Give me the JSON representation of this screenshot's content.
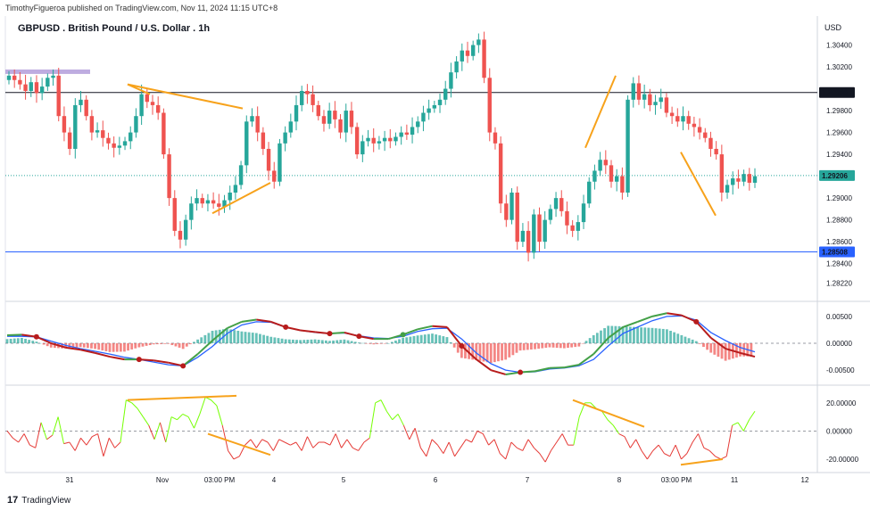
{
  "header": {
    "publisher": "TimothyFigueroa published on TradingView.com, Nov 11, 2024 11:15 UTC+8",
    "title": "GBPUSD . British Pound / U.S. Dollar . 1h",
    "currency": "USD"
  },
  "footer": {
    "logo_text": "TradingView",
    "logo_icon": "tradingview-logo-icon"
  },
  "colors": {
    "up": "#26a69a",
    "down": "#ef5350",
    "orange": "#f7a21b",
    "black_line": "#131722",
    "blue_line": "#2962ff",
    "green_dotted": "#26a69a",
    "purple_zone": "#b39ddb",
    "macd_fast_up": "#43a047",
    "macd_fast_down": "#b71c1c",
    "macd_slow": "#2962ff",
    "osc_up": "#76ff03",
    "osc_down": "#e53935"
  },
  "chart_data": [
    {
      "type": "candlestick",
      "name": "price",
      "ylim": [
        1.2812,
        1.306
      ],
      "y_ticks": [
        "1.30400",
        "1.30200",
        "1.29800",
        "1.29600",
        "1.29400",
        "1.29000",
        "1.28800",
        "1.28600",
        "1.28400",
        "1.28220"
      ],
      "price_labels": [
        {
          "text": "1.29966",
          "value": 1.29966,
          "style": "dark"
        },
        {
          "text": "1.29206",
          "value": 1.29206,
          "style": "green"
        },
        {
          "text": "1.28508",
          "value": 1.28508,
          "style": "blue"
        }
      ],
      "horizontal_lines": [
        {
          "value": 1.29966,
          "color": "black"
        },
        {
          "value": 1.28508,
          "color": "blue"
        },
        {
          "value": 1.29206,
          "color": "green-dotted"
        }
      ],
      "x_labels": [
        "31",
        "Nov",
        "03:00 PM",
        "4",
        "5",
        "6",
        "7",
        "8",
        "03:00 PM",
        "11",
        "12"
      ],
      "closes": [
        1.3012,
        1.3008,
        1.3004,
        1.2998,
        1.3006,
        1.2996,
        1.3002,
        1.301,
        1.3012,
        1.2975,
        1.296,
        1.2945,
        1.2985,
        1.299,
        1.2975,
        1.296,
        1.2962,
        1.2955,
        1.295,
        1.2946,
        1.2948,
        1.2952,
        1.296,
        1.2975,
        1.2995,
        1.2988,
        1.2985,
        1.2978,
        1.294,
        1.29,
        1.287,
        1.2862,
        1.288,
        1.2895,
        1.29,
        1.2895,
        1.2898,
        1.2895,
        1.2892,
        1.2898,
        1.2905,
        1.2912,
        1.293,
        1.297,
        1.2975,
        1.296,
        1.2945,
        1.2925,
        1.2915,
        1.295,
        1.296,
        1.297,
        1.2985,
        1.2998,
        1.2995,
        1.2985,
        1.2975,
        1.2968,
        1.298,
        1.2972,
        1.296,
        1.298,
        1.2965,
        1.294,
        1.2952,
        1.2955,
        1.295,
        1.2952,
        1.2955,
        1.2952,
        1.2956,
        1.296,
        1.2958,
        1.2965,
        1.297,
        1.2978,
        1.2982,
        1.2985,
        1.299,
        1.3,
        1.3015,
        1.3025,
        1.3035,
        1.303,
        1.304,
        1.3045,
        1.301,
        1.296,
        1.295,
        1.2895,
        1.288,
        1.2905,
        1.286,
        1.287,
        1.285,
        1.2885,
        1.286,
        1.288,
        1.289,
        1.29,
        1.2888,
        1.2875,
        1.287,
        1.2878,
        1.2895,
        1.2915,
        1.2925,
        1.2935,
        1.293,
        1.2915,
        1.292,
        1.2905,
        1.299,
        1.3005,
        1.299,
        1.2995,
        1.2985,
        1.2988,
        1.2992,
        1.2978,
        1.2975,
        1.297,
        1.2975,
        1.2968,
        1.2965,
        1.296,
        1.2955,
        1.2945,
        1.294,
        1.2905,
        1.2912,
        1.2918,
        1.2915,
        1.2922,
        1.2914,
        1.292
      ]
    },
    {
      "type": "line",
      "name": "macd",
      "ylim": [
        -0.0068,
        0.0068
      ],
      "y_ticks": [
        "0.00500",
        "0.00000",
        "-0.00500"
      ],
      "series": [
        {
          "name": "fast",
          "values": [
            0.0015,
            0.0016,
            0.0012,
            0.0,
            -0.0008,
            -0.0012,
            -0.0018,
            -0.0025,
            -0.003,
            -0.003,
            -0.0032,
            -0.0036,
            -0.0042,
            -0.002,
            0.0005,
            0.0028,
            0.004,
            0.0044,
            0.004,
            0.003,
            0.0024,
            0.0021,
            0.0018,
            0.002,
            0.0013,
            0.0008,
            0.0008,
            0.0016,
            0.0026,
            0.0032,
            0.003,
            -0.0005,
            -0.003,
            -0.005,
            -0.0058,
            -0.0054,
            -0.0052,
            -0.0046,
            -0.0045,
            -0.004,
            -0.002,
            0.001,
            0.003,
            0.004,
            0.005,
            0.0056,
            0.0052,
            0.004,
            0.001,
            -0.001,
            -0.0018,
            -0.0025
          ]
        },
        {
          "name": "slow",
          "values": [
            0.0013,
            0.0013,
            0.0012,
            0.0004,
            -0.0004,
            -0.001,
            -0.0015,
            -0.002,
            -0.0026,
            -0.003,
            -0.0035,
            -0.004,
            -0.0042,
            -0.0026,
            -0.0006,
            0.0018,
            0.0034,
            0.004,
            0.0039,
            0.003,
            0.0024,
            0.002,
            0.0018,
            0.0019,
            0.0014,
            0.001,
            0.0009,
            0.0013,
            0.0022,
            0.0027,
            0.0028,
            0.0008,
            -0.0018,
            -0.0038,
            -0.005,
            -0.0054,
            -0.0053,
            -0.0048,
            -0.0046,
            -0.0042,
            -0.003,
            -0.0005,
            0.0018,
            0.003,
            0.0042,
            0.005,
            0.0051,
            0.0043,
            0.002,
            0.0005,
            -0.0008,
            -0.0016
          ]
        }
      ],
      "zero_label": "0.00000"
    },
    {
      "type": "line",
      "name": "oscillator",
      "ylim": [
        -27,
        30
      ],
      "y_ticks": [
        "20.00000",
        "0.00000",
        "-20.00000"
      ],
      "values": [
        0,
        -5,
        -8,
        -2,
        -10,
        -12,
        6,
        -6,
        -3,
        10,
        -9,
        -8,
        -14,
        -5,
        -10,
        -4,
        -2,
        -18,
        -5,
        -12,
        -8,
        22,
        20,
        16,
        10,
        4,
        -6,
        6,
        -8,
        10,
        8,
        12,
        10,
        2,
        12,
        24,
        22,
        18,
        4,
        -14,
        -20,
        -18,
        -10,
        -6,
        -12,
        -6,
        -8,
        -14,
        -6,
        -8,
        -10,
        -8,
        -14,
        -4,
        -12,
        -8,
        -8,
        -10,
        -2,
        -12,
        -6,
        -12,
        -14,
        -8,
        -5,
        20,
        22,
        14,
        8,
        12,
        4,
        -6,
        2,
        -12,
        -18,
        -6,
        -10,
        -16,
        -8,
        -18,
        -12,
        -6,
        -8,
        0,
        -2,
        -10,
        -6,
        -16,
        -20,
        -8,
        -12,
        -14,
        -6,
        -12,
        -16,
        -22,
        -14,
        -8,
        -2,
        -10,
        -10,
        10,
        20,
        20,
        16,
        14,
        8,
        4,
        -2,
        -4,
        -12,
        -6,
        -14,
        -20,
        -14,
        -10,
        -16,
        -18,
        -10,
        -20,
        -16,
        -8,
        -2,
        -12,
        -14,
        -18,
        -20,
        -18,
        4,
        6,
        0,
        8,
        14
      ]
    }
  ]
}
